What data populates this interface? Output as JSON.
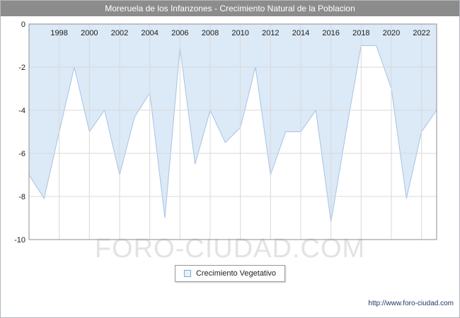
{
  "title": "Moreruela de los Infanzones - Crecimiento Natural de la Poblacion",
  "watermark": "FORO-CIUDAD.COM",
  "footer_url": "http://www.foro-ciudad.com",
  "legend": {
    "label": "Crecimiento Vegetativo"
  },
  "colors": {
    "titlebar_bg": "#8c8c8c",
    "area_fill": "#dce9f7",
    "area_line": "#a6c3e3",
    "grid": "#d9d9d9",
    "plot_border": "#8f8f8f"
  },
  "chart_data": {
    "type": "area",
    "title": "Moreruela de los Infanzones - Crecimiento Natural de la Poblacion",
    "series_name": "Crecimiento Vegetativo",
    "x": [
      1996,
      1997,
      1998,
      1999,
      2000,
      2001,
      2002,
      2003,
      2004,
      2005,
      2006,
      2007,
      2008,
      2009,
      2010,
      2011,
      2012,
      2013,
      2014,
      2015,
      2016,
      2017,
      2018,
      2019,
      2020,
      2021,
      2022,
      2023
    ],
    "values": [
      -7,
      -8.1,
      -5,
      -2,
      -5,
      -4,
      -7,
      -4.3,
      -3.2,
      -9,
      -1.1,
      -6.5,
      -4,
      -5.5,
      -4.8,
      -2,
      -7,
      -5,
      -5,
      -4,
      -9.2,
      -5,
      -1,
      -1,
      -3,
      -8.1,
      -5,
      -4
    ],
    "x_ticks": [
      1998,
      2000,
      2002,
      2004,
      2006,
      2008,
      2010,
      2012,
      2014,
      2016,
      2018,
      2020,
      2022
    ],
    "y_ticks": [
      0,
      -2,
      -4,
      -6,
      -8,
      -10
    ],
    "xlim": [
      1996,
      2023
    ],
    "ylim": [
      -10,
      0
    ],
    "grid": true,
    "legend_position": "bottom",
    "fill_color": "#dce9f7",
    "line_color": "#a6c3e3",
    "grid_color": "#d9d9d9"
  }
}
